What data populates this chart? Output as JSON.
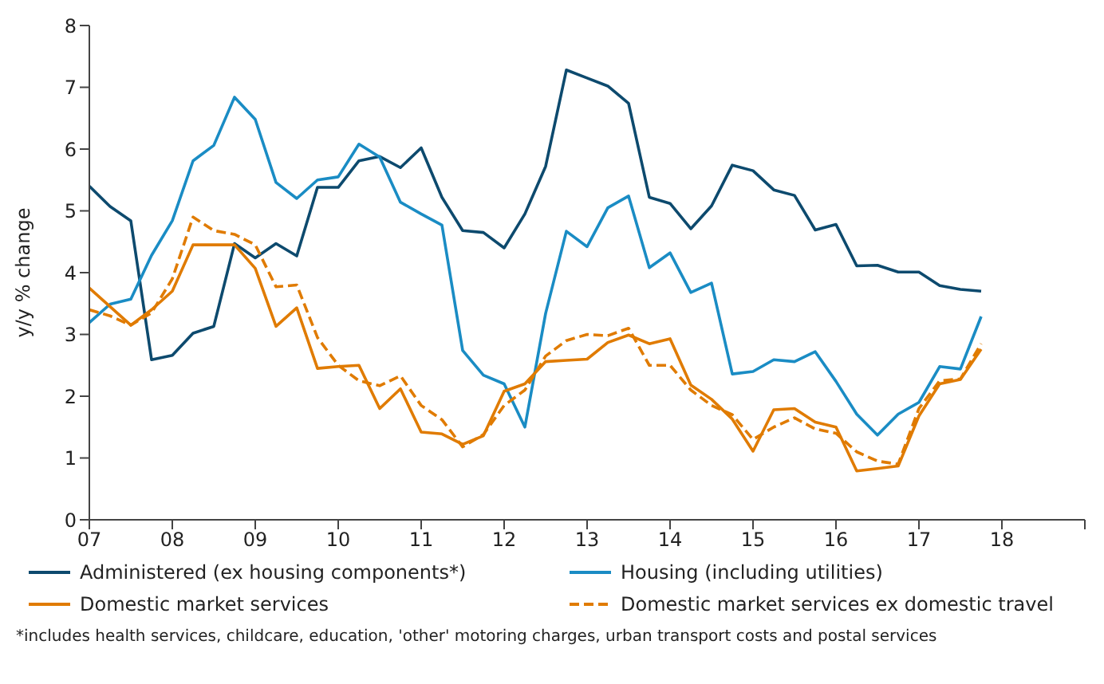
{
  "chart_data": {
    "type": "line",
    "ylabel": "y/y % change",
    "x": [
      2007,
      2007.25,
      2007.5,
      2007.75,
      2008,
      2008.25,
      2008.5,
      2008.75,
      2009,
      2009.25,
      2009.5,
      2009.75,
      2010,
      2010.25,
      2010.5,
      2010.75,
      2011,
      2011.25,
      2011.5,
      2011.75,
      2012,
      2012.25,
      2012.5,
      2012.75,
      2013,
      2013.25,
      2013.5,
      2013.75,
      2014,
      2014.25,
      2014.5,
      2014.75,
      2015,
      2015.25,
      2015.5,
      2015.75,
      2016,
      2016.25,
      2016.5,
      2016.75,
      2017,
      2017.25,
      2017.5,
      2017.75
    ],
    "series": [
      {
        "name": "Administered (ex housing components*)",
        "color": "#0d4a6e",
        "values": [
          5.4,
          5.07,
          4.84,
          2.59,
          2.66,
          3.02,
          3.13,
          4.47,
          4.24,
          4.47,
          4.27,
          5.38,
          5.38,
          5.81,
          5.88,
          5.7,
          6.02,
          5.22,
          4.68,
          4.65,
          4.4,
          4.95,
          5.72,
          7.28,
          7.15,
          7.02,
          6.74,
          5.22,
          5.12,
          4.71,
          5.08,
          5.74,
          5.65,
          5.34,
          5.25,
          4.69,
          4.78,
          4.11,
          4.12,
          4.01,
          4.01,
          3.79,
          3.73,
          3.7
        ]
      },
      {
        "name": "Housing (including utilities)",
        "color": "#1a8cc4",
        "values": [
          3.19,
          3.49,
          3.57,
          4.28,
          4.84,
          5.81,
          6.06,
          6.84,
          6.48,
          5.46,
          5.2,
          5.5,
          5.55,
          6.08,
          5.87,
          5.14,
          4.95,
          4.77,
          2.74,
          2.34,
          2.2,
          1.5,
          3.34,
          4.67,
          4.42,
          5.05,
          5.24,
          4.08,
          4.32,
          3.68,
          3.83,
          2.36,
          2.4,
          2.59,
          2.56,
          2.72,
          2.24,
          1.71,
          1.37,
          1.71,
          1.9,
          2.48,
          2.44,
          3.29
        ]
      },
      {
        "name": "Domestic market services",
        "color": "#e07b00",
        "values": [
          3.75,
          3.45,
          3.15,
          3.4,
          3.7,
          4.45,
          4.45,
          4.45,
          4.07,
          3.13,
          3.43,
          2.45,
          2.48,
          2.5,
          1.8,
          2.12,
          1.42,
          1.39,
          1.22,
          1.36,
          2.08,
          2.2,
          2.56,
          2.58,
          2.6,
          2.87,
          2.99,
          2.85,
          2.93,
          2.18,
          1.95,
          1.63,
          1.11,
          1.78,
          1.8,
          1.58,
          1.5,
          0.79,
          0.83,
          0.87,
          1.68,
          2.2,
          2.27,
          2.76
        ]
      },
      {
        "name": "Domestic market services ex domestic travel",
        "color": "#e07b00",
        "line_style": "dashed",
        "values": [
          3.4,
          3.3,
          3.15,
          3.35,
          3.9,
          4.9,
          4.68,
          4.62,
          4.45,
          3.77,
          3.8,
          2.95,
          2.5,
          2.25,
          2.17,
          2.33,
          1.85,
          1.62,
          1.18,
          1.38,
          1.85,
          2.1,
          2.65,
          2.9,
          3.0,
          2.98,
          3.1,
          2.5,
          2.5,
          2.1,
          1.85,
          1.7,
          1.3,
          1.5,
          1.65,
          1.47,
          1.4,
          1.1,
          0.95,
          0.9,
          1.8,
          2.25,
          2.28,
          2.85
        ]
      }
    ],
    "xlim": [
      2007,
      2019
    ],
    "xticks": [
      {
        "value": 2007,
        "label": "07"
      },
      {
        "value": 2008,
        "label": "08"
      },
      {
        "value": 2009,
        "label": "09"
      },
      {
        "value": 2010,
        "label": "10"
      },
      {
        "value": 2011,
        "label": "11"
      },
      {
        "value": 2012,
        "label": "12"
      },
      {
        "value": 2013,
        "label": "13"
      },
      {
        "value": 2014,
        "label": "14"
      },
      {
        "value": 2015,
        "label": "15"
      },
      {
        "value": 2016,
        "label": "16"
      },
      {
        "value": 2017,
        "label": "17"
      },
      {
        "value": 2018,
        "label": "18"
      },
      {
        "value": 2019,
        "label": null
      }
    ],
    "ylim": [
      0,
      8
    ],
    "yticks": [
      0,
      1,
      2,
      3,
      4,
      5,
      6,
      7,
      8
    ],
    "grid": false,
    "legend": "bottom",
    "marker": "none",
    "line_style": "solid",
    "annotations": [
      "*includes health services, childcare, education, 'other' motoring charges, urban transport costs and postal services"
    ]
  }
}
